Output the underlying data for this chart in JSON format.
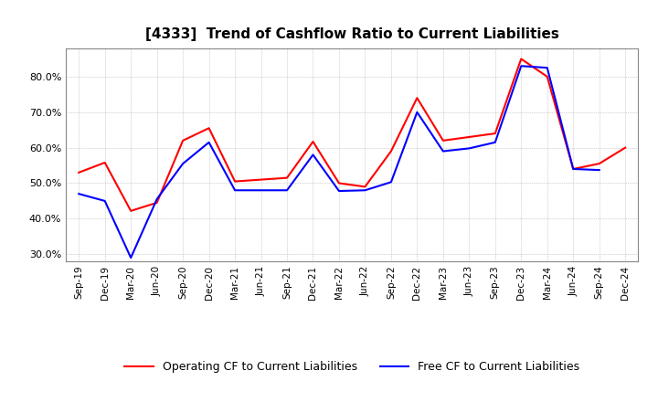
{
  "title": "[4333]  Trend of Cashflow Ratio to Current Liabilities",
  "x_labels": [
    "Sep-19",
    "Dec-19",
    "Mar-20",
    "Jun-20",
    "Sep-20",
    "Dec-20",
    "Mar-21",
    "Jun-21",
    "Sep-21",
    "Dec-21",
    "Mar-22",
    "Jun-22",
    "Sep-22",
    "Dec-22",
    "Mar-23",
    "Jun-23",
    "Sep-23",
    "Dec-23",
    "Mar-24",
    "Jun-24",
    "Sep-24",
    "Dec-24"
  ],
  "operating_cf": [
    0.53,
    0.558,
    0.422,
    0.445,
    0.62,
    0.655,
    0.505,
    0.51,
    0.515,
    0.617,
    0.5,
    0.49,
    0.59,
    0.74,
    0.62,
    0.63,
    0.64,
    0.85,
    0.8,
    0.54,
    0.555,
    0.6
  ],
  "free_cf": [
    0.47,
    0.45,
    0.29,
    0.455,
    0.555,
    0.615,
    0.48,
    0.48,
    0.48,
    0.58,
    0.478,
    0.48,
    0.503,
    0.7,
    0.59,
    0.598,
    0.615,
    0.83,
    0.825,
    0.54,
    0.537,
    null
  ],
  "ylim": [
    0.28,
    0.88
  ],
  "yticks": [
    0.3,
    0.4,
    0.5,
    0.6,
    0.7,
    0.8
  ],
  "operating_color": "#ff0000",
  "free_color": "#0000ff",
  "background_color": "#ffffff",
  "grid_color": "#aaaaaa",
  "legend_labels": [
    "Operating CF to Current Liabilities",
    "Free CF to Current Liabilities"
  ]
}
